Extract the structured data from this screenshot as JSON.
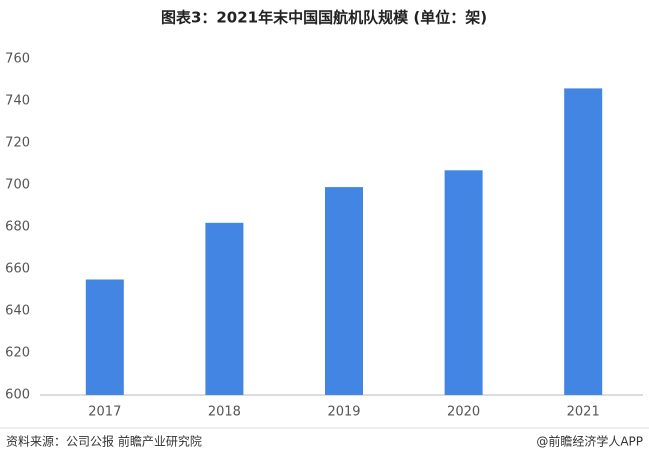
{
  "chart_data": {
    "type": "bar",
    "title": "图表3：2021年末中国国航机队规模 (单位：架)",
    "categories": [
      "2017",
      "2018",
      "2019",
      "2020",
      "2021"
    ],
    "values": [
      655,
      682,
      699,
      707,
      746
    ],
    "color": "#4285e2",
    "ylim": [
      600,
      760
    ],
    "yticks": [
      600,
      620,
      640,
      660,
      680,
      700,
      720,
      740,
      760
    ],
    "grid": false,
    "source": "资料来源：公司公报 前瞻产业研究院",
    "credit": "@前瞻经济学人APP"
  }
}
